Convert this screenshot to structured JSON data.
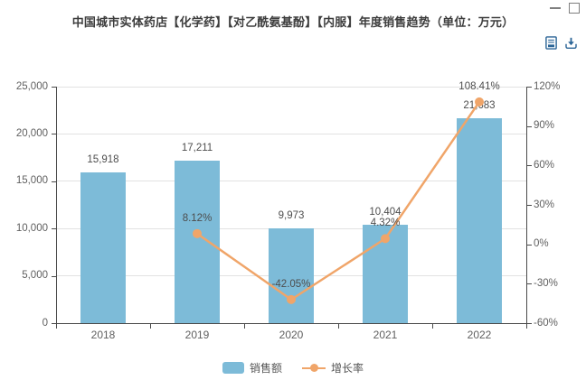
{
  "window": {
    "controls": [
      {
        "icon": "minimize-icon"
      },
      {
        "icon": "maximize-icon"
      }
    ]
  },
  "toolbar": {
    "icons": [
      {
        "name": "report-document-icon"
      },
      {
        "name": "download-icon"
      }
    ]
  },
  "colors": {
    "bar": "#7dbbd8",
    "line": "#f0a569",
    "icon_blue": "#2a6496",
    "axis": "#4a4a4a",
    "grid": "#e2e2e2"
  },
  "chart_data": {
    "type": "bar",
    "title": "中国城市实体药店【化学药】【对乙酰氨基酚】【内服】年度销售趋势（单位：万元）",
    "categories": [
      "2018",
      "2019",
      "2020",
      "2021",
      "2022"
    ],
    "series": [
      {
        "name": "销售额",
        "type": "bar",
        "axis": "left",
        "color": "#7dbbd8",
        "values": [
          15918,
          17211,
          9973,
          10404,
          21683
        ],
        "labels": [
          "15,918",
          "17,211",
          "9,973",
          "10,404",
          "21,683"
        ]
      },
      {
        "name": "增长率",
        "type": "line",
        "axis": "right",
        "color": "#f0a569",
        "values": [
          null,
          8.12,
          -42.05,
          4.32,
          108.41
        ],
        "labels": [
          null,
          "8.12%",
          "-42.05%",
          "4.32%",
          "108.41%"
        ]
      }
    ],
    "left_axis": {
      "min": 0,
      "max": 25000,
      "tick_values": [
        0,
        5000,
        10000,
        15000,
        20000,
        25000
      ],
      "tick_labels": [
        "0",
        "5,000",
        "10,000",
        "15,000",
        "20,000",
        "25,000"
      ]
    },
    "right_axis": {
      "min": -60,
      "max": 120,
      "tick_values": [
        -60,
        -30,
        0,
        30,
        60,
        90,
        120
      ],
      "tick_labels": [
        "-60%",
        "-30%",
        "0%",
        "30%",
        "60%",
        "90%",
        "120%"
      ]
    },
    "legend": [
      "销售额",
      "增长率"
    ],
    "grid": true,
    "legend_position": "bottom"
  }
}
